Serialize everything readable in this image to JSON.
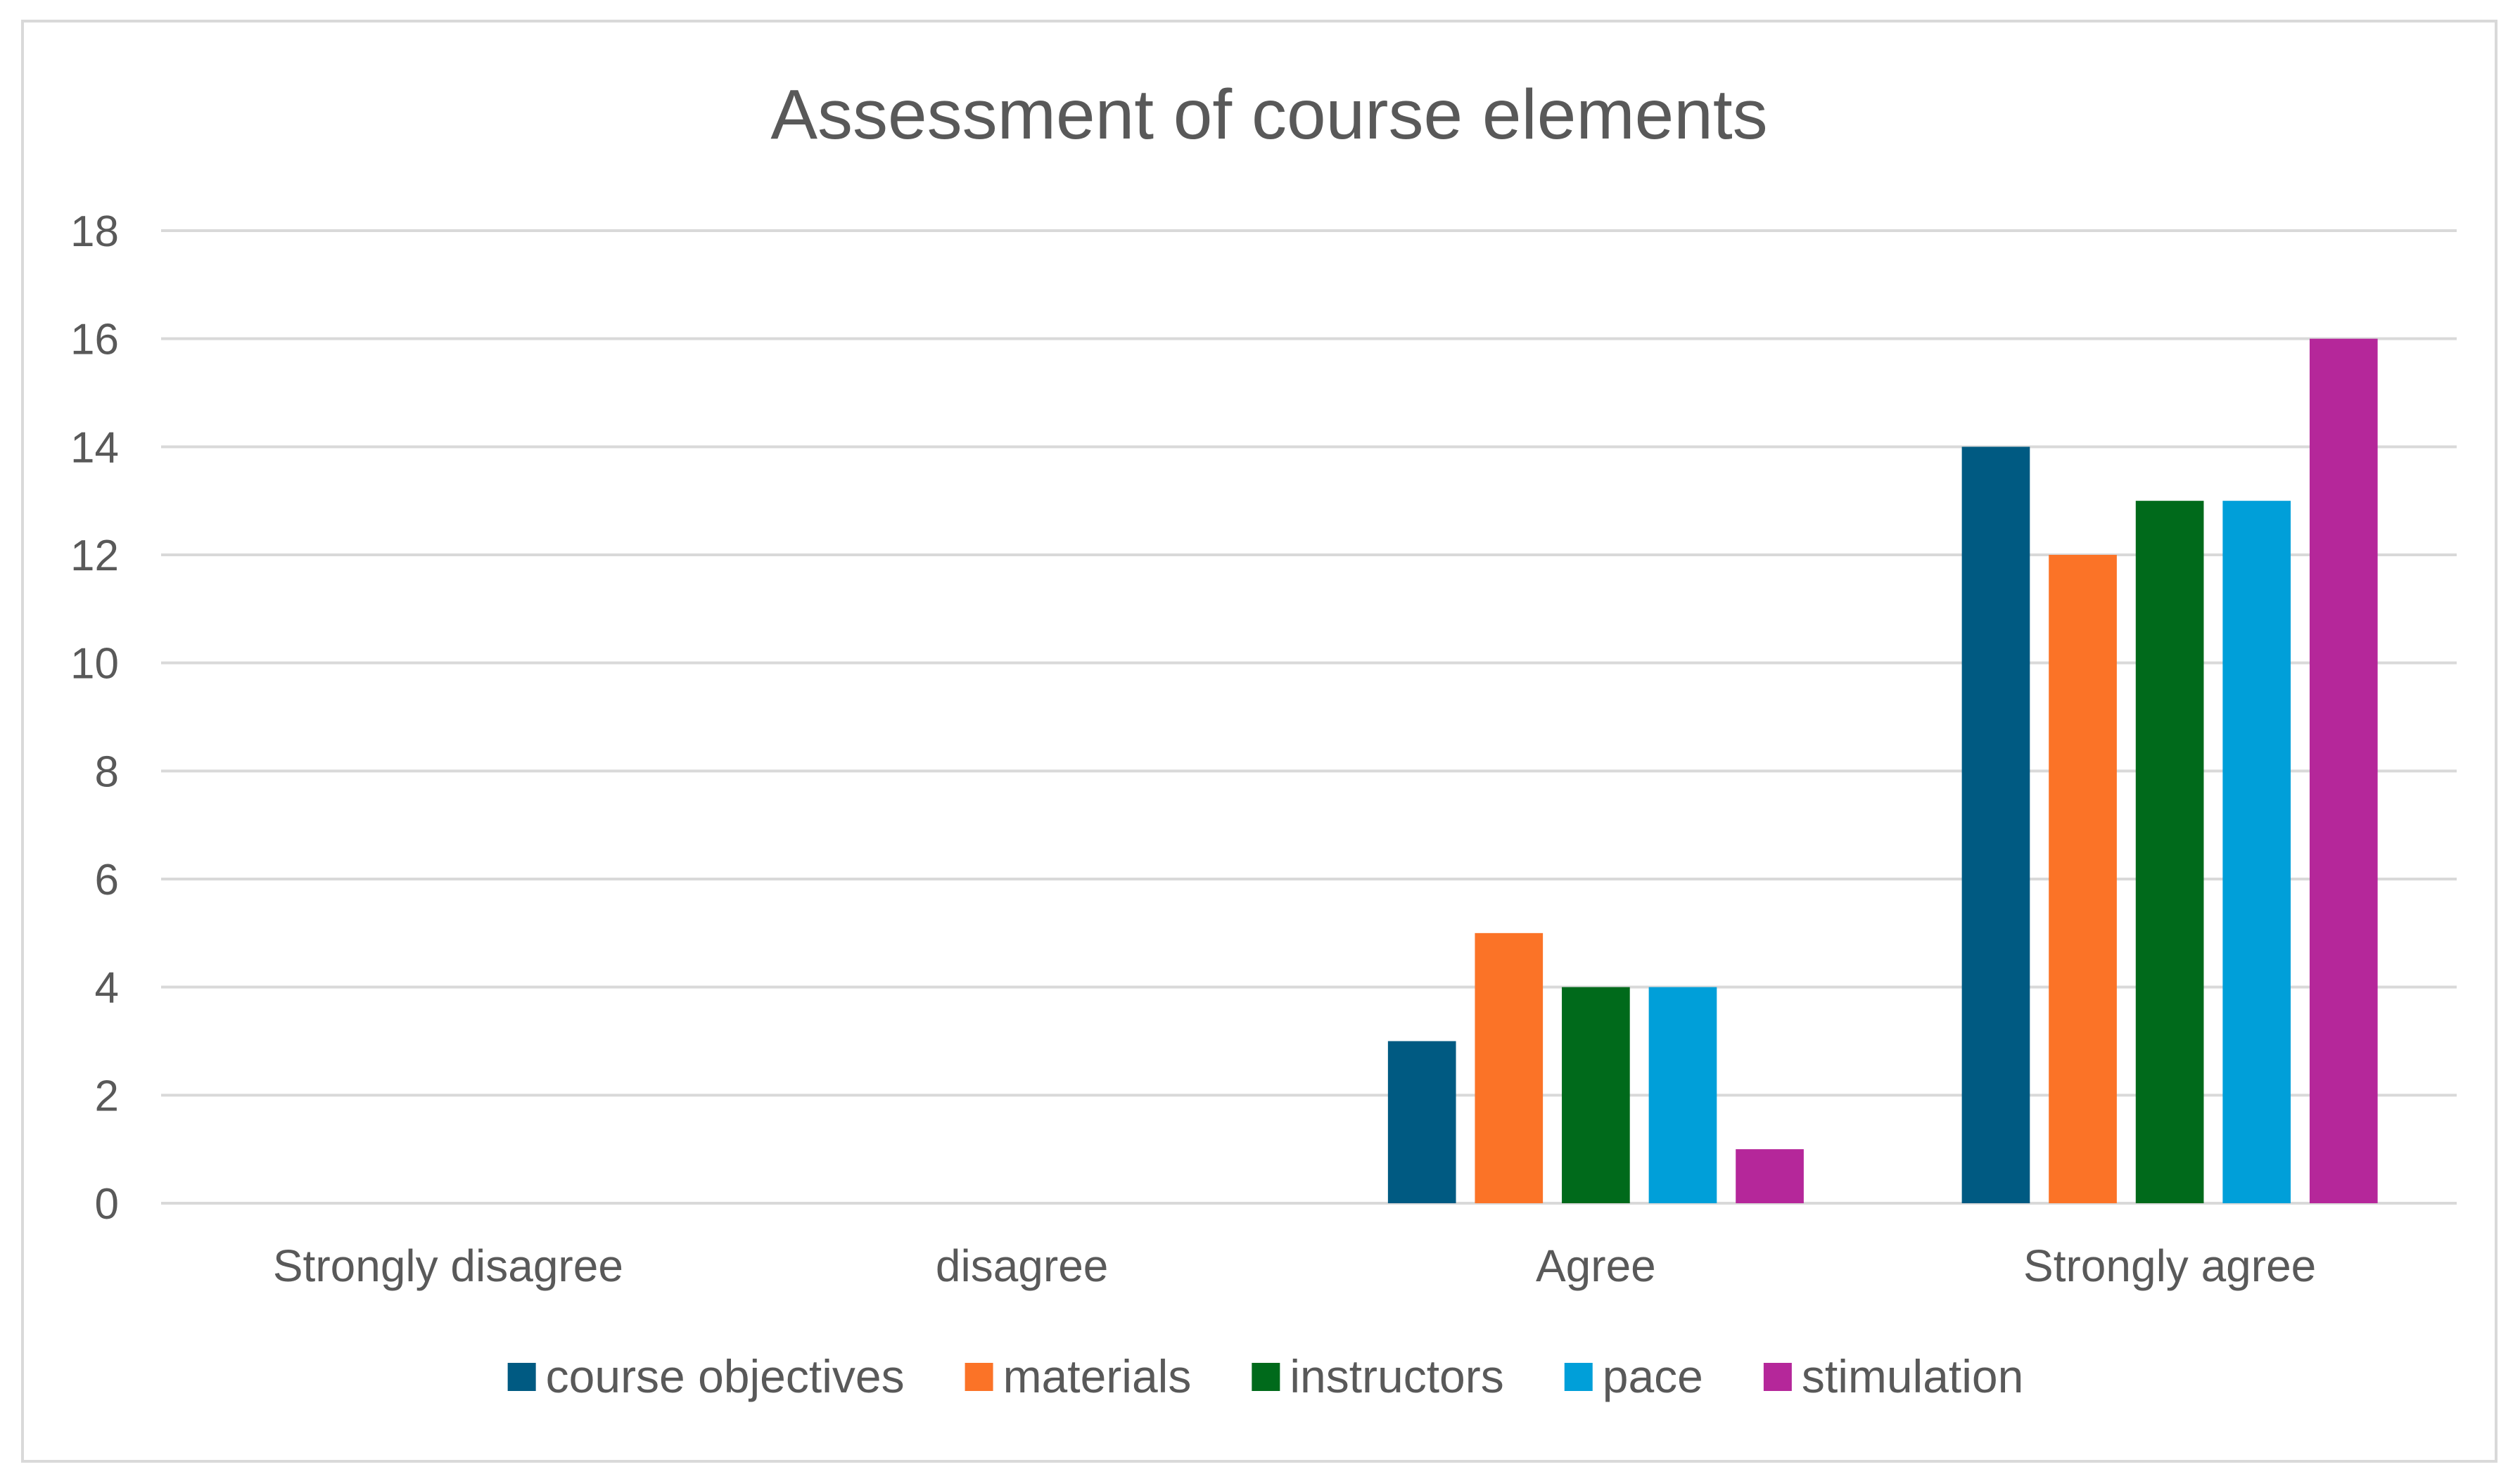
{
  "chart_data": {
    "type": "bar",
    "title": "Assessment of course elements",
    "xlabel": "",
    "ylabel": "",
    "categories": [
      "Strongly disagree",
      "disagree",
      "Agree",
      "Strongly agree"
    ],
    "series": [
      {
        "name": "course objectives",
        "color": "#005a82",
        "values": [
          0,
          0,
          3,
          14
        ]
      },
      {
        "name": "materials",
        "color": "#fb7327",
        "values": [
          0,
          0,
          5,
          12
        ]
      },
      {
        "name": "instructors",
        "color": "#006a1b",
        "values": [
          0,
          0,
          4,
          13
        ]
      },
      {
        "name": "pace",
        "color": "#009fd9",
        "values": [
          0,
          0,
          4,
          13
        ]
      },
      {
        "name": "stimulation",
        "color": "#b5279a",
        "values": [
          0,
          0,
          1,
          16
        ]
      }
    ],
    "ylim": [
      0,
      18
    ],
    "yticks": [
      0,
      2,
      4,
      6,
      8,
      10,
      12,
      14,
      16,
      18
    ],
    "grid": true,
    "legend_position": "bottom"
  }
}
